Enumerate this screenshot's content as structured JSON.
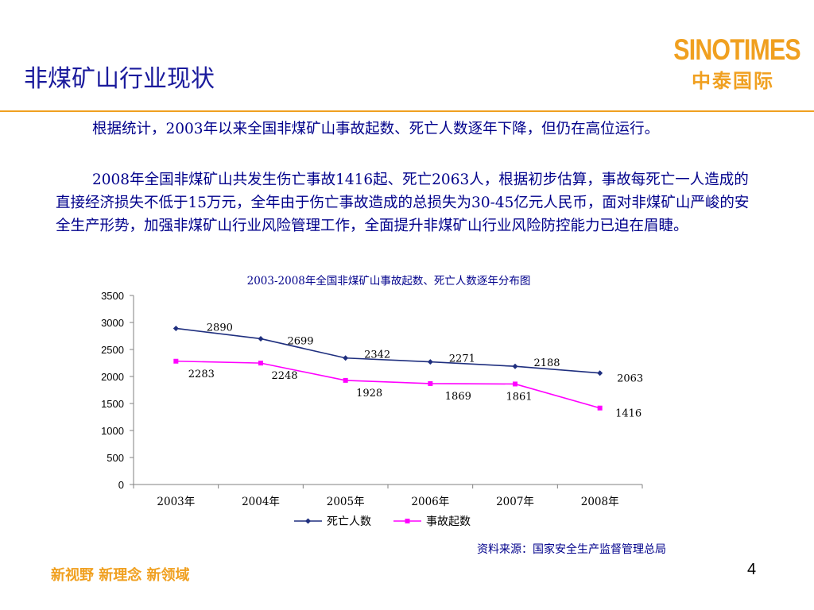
{
  "slide": {
    "title": "非煤矿山行业现状",
    "logo_en": "SINOTIMES",
    "logo_cn": "中泰国际",
    "paragraphs": [
      "根据统计，2003年以来全国非煤矿山事故起数、死亡人数逐年下降，但仍在高位运行。",
      "2008年全国非煤矿山共发生伤亡事故1416起、死亡2063人，根据初步估算，事故每死亡一人造成的直接经济损失不低于15万元，全年由于伤亡事故造成的总损失为30-45亿元人民币，面对非煤矿山严峻的安全生产形势，加强非煤矿山行业风险管理工作，全面提升非煤矿山行业风险防控能力已迫在眉睫。"
    ],
    "source": "资料来源：国家安全生产监督管理总局",
    "slogan": "新视野  新理念  新领域",
    "page_number": "4",
    "colors": {
      "title": "#1a1a9c",
      "accent": "#f0a020",
      "text": "#00008b"
    }
  },
  "chart_data": {
    "type": "line",
    "title": "2003-2008年全国非煤矿山事故起数、死亡人数逐年分布图",
    "categories": [
      "2003年",
      "2004年",
      "2005年",
      "2006年",
      "2007年",
      "2008年"
    ],
    "ylim": [
      0,
      3500
    ],
    "yticks": [
      "3500",
      "3000",
      "2500",
      "2000",
      "1500",
      "1000",
      "500",
      "0"
    ],
    "grid": false,
    "legend": "bottom",
    "series": [
      {
        "name": "死亡人数",
        "values": [
          2890,
          2699,
          2342,
          2271,
          2188,
          2063
        ],
        "color": "#1f2f7f",
        "marker": "diamond"
      },
      {
        "name": "事故起数",
        "values": [
          2283,
          2248,
          1928,
          1869,
          1861,
          1416
        ],
        "color": "#ff00ff",
        "marker": "square"
      }
    ]
  }
}
